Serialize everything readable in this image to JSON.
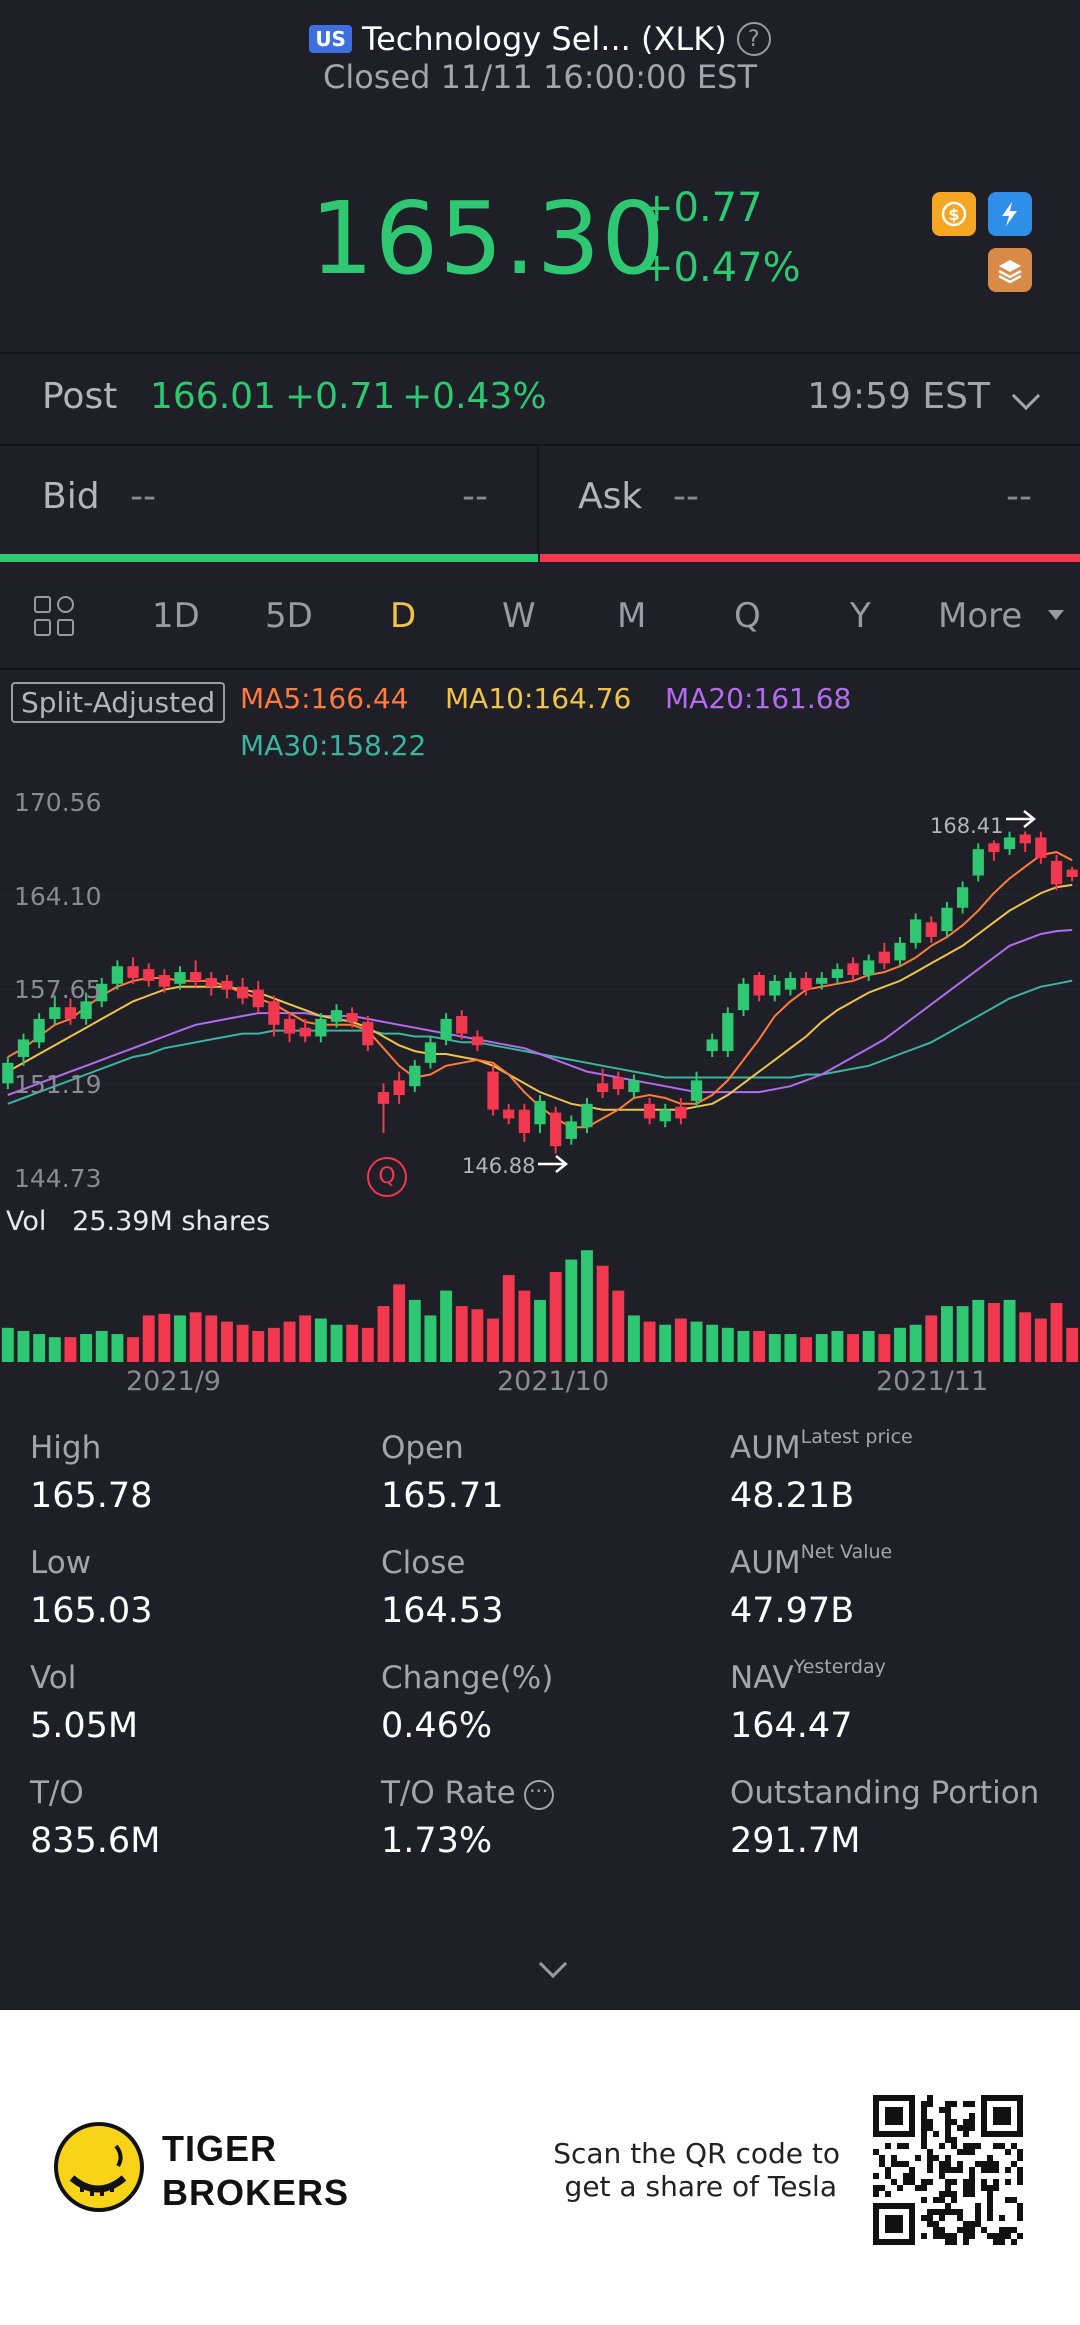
{
  "header": {
    "market_badge": "US",
    "title": "Technology Sel... (XLK)",
    "help": "?",
    "status": "Closed 11/11 16:00:00 EST"
  },
  "quote": {
    "price": "165.30",
    "change": "+0.77",
    "change_pct": "+0.47%",
    "color": "#2ec772",
    "feature_icons": [
      "dollar-icon",
      "lightning-icon",
      "stack-icon"
    ]
  },
  "post": {
    "label": "Post",
    "price": "166.01",
    "change": "+0.71",
    "change_pct": "+0.43%",
    "time": "19:59 EST"
  },
  "bid_ask": {
    "bid_label": "Bid",
    "bid_price": "--",
    "bid_size": "--",
    "ask_label": "Ask",
    "ask_price": "--",
    "ask_size": "--",
    "bid_color": "#2ec772",
    "ask_color": "#f2384f"
  },
  "period_tabs": {
    "items": [
      "1D",
      "5D",
      "D",
      "W",
      "M",
      "Q",
      "Y",
      "More"
    ],
    "active": "D"
  },
  "indicators": {
    "split_adjusted": "Split-Adjusted",
    "ma5": "MA5:166.44",
    "ma10": "MA10:164.76",
    "ma20": "MA20:161.68",
    "ma30": "MA30:158.22",
    "colors": {
      "ma5": "#ff7a3d",
      "ma10": "#f0c34a",
      "ma20": "#b36cf0",
      "ma30": "#3bb5a0"
    }
  },
  "chart": {
    "y_axis": [
      "170.56",
      "164.10",
      "157.65",
      "151.19",
      "144.73"
    ],
    "high_marker": "168.41",
    "low_marker": "146.88",
    "event_marker": "Q",
    "volume_label": "Vol",
    "volume_value": "25.39M shares",
    "x_axis": [
      "2021/9",
      "2021/10",
      "2021/11"
    ]
  },
  "chart_data": {
    "type": "candlestick",
    "ylim": [
      144.73,
      170.56
    ],
    "up_color": "#2ec772",
    "down_color": "#f2384f",
    "candles": [
      {
        "o": 151.2,
        "c": 152.6,
        "h": 153.0,
        "l": 150.8
      },
      {
        "o": 153.0,
        "c": 154.2,
        "h": 154.6,
        "l": 152.4
      },
      {
        "o": 154.0,
        "c": 155.6,
        "h": 156.0,
        "l": 153.6
      },
      {
        "o": 155.6,
        "c": 156.4,
        "h": 157.2,
        "l": 155.2
      },
      {
        "o": 156.4,
        "c": 155.6,
        "h": 157.0,
        "l": 155.2
      },
      {
        "o": 155.6,
        "c": 156.8,
        "h": 157.4,
        "l": 155.2
      },
      {
        "o": 156.8,
        "c": 158.0,
        "h": 158.4,
        "l": 156.4
      },
      {
        "o": 158.0,
        "c": 159.2,
        "h": 159.6,
        "l": 157.6
      },
      {
        "o": 159.2,
        "c": 158.4,
        "h": 159.8,
        "l": 158.0
      },
      {
        "o": 159.0,
        "c": 158.2,
        "h": 159.4,
        "l": 157.8
      },
      {
        "o": 158.6,
        "c": 157.8,
        "h": 159.0,
        "l": 157.4
      },
      {
        "o": 158.0,
        "c": 158.8,
        "h": 159.2,
        "l": 157.6
      },
      {
        "o": 158.8,
        "c": 158.2,
        "h": 159.6,
        "l": 157.8
      },
      {
        "o": 158.4,
        "c": 157.8,
        "h": 158.8,
        "l": 157.2
      },
      {
        "o": 158.2,
        "c": 157.6,
        "h": 158.6,
        "l": 157.0
      },
      {
        "o": 157.8,
        "c": 157.0,
        "h": 158.4,
        "l": 156.6
      },
      {
        "o": 157.6,
        "c": 156.4,
        "h": 158.2,
        "l": 156.0
      },
      {
        "o": 156.8,
        "c": 155.2,
        "h": 157.2,
        "l": 154.4
      },
      {
        "o": 155.6,
        "c": 154.6,
        "h": 156.0,
        "l": 154.0
      },
      {
        "o": 155.0,
        "c": 154.4,
        "h": 155.6,
        "l": 154.0
      },
      {
        "o": 154.4,
        "c": 155.6,
        "h": 156.0,
        "l": 154.0
      },
      {
        "o": 155.4,
        "c": 156.2,
        "h": 156.6,
        "l": 155.0
      },
      {
        "o": 156.0,
        "c": 155.4,
        "h": 156.4,
        "l": 155.0
      },
      {
        "o": 155.4,
        "c": 153.8,
        "h": 155.8,
        "l": 153.4
      },
      {
        "o": 150.6,
        "c": 149.8,
        "h": 151.2,
        "l": 147.8
      },
      {
        "o": 151.4,
        "c": 150.4,
        "h": 152.0,
        "l": 149.8
      },
      {
        "o": 151.0,
        "c": 152.4,
        "h": 152.8,
        "l": 150.6
      },
      {
        "o": 152.6,
        "c": 154.0,
        "h": 154.4,
        "l": 152.2
      },
      {
        "o": 154.2,
        "c": 155.6,
        "h": 156.0,
        "l": 153.8
      },
      {
        "o": 155.8,
        "c": 154.6,
        "h": 156.2,
        "l": 154.2
      },
      {
        "o": 154.4,
        "c": 153.8,
        "h": 154.8,
        "l": 153.4
      },
      {
        "o": 152.0,
        "c": 149.4,
        "h": 152.4,
        "l": 149.0
      },
      {
        "o": 149.4,
        "c": 148.8,
        "h": 149.8,
        "l": 148.4
      },
      {
        "o": 149.4,
        "c": 147.8,
        "h": 149.8,
        "l": 147.2
      },
      {
        "o": 148.4,
        "c": 150.0,
        "h": 150.4,
        "l": 147.8
      },
      {
        "o": 149.2,
        "c": 146.9,
        "h": 149.6,
        "l": 146.4
      },
      {
        "o": 147.4,
        "c": 148.6,
        "h": 149.0,
        "l": 147.0
      },
      {
        "o": 148.2,
        "c": 149.8,
        "h": 150.2,
        "l": 147.8
      },
      {
        "o": 151.2,
        "c": 150.6,
        "h": 152.2,
        "l": 150.2
      },
      {
        "o": 151.6,
        "c": 150.8,
        "h": 152.0,
        "l": 150.4
      },
      {
        "o": 150.6,
        "c": 151.4,
        "h": 151.8,
        "l": 150.2
      },
      {
        "o": 149.8,
        "c": 148.8,
        "h": 150.2,
        "l": 148.4
      },
      {
        "o": 148.6,
        "c": 149.4,
        "h": 149.8,
        "l": 148.2
      },
      {
        "o": 149.6,
        "c": 148.8,
        "h": 150.2,
        "l": 148.4
      },
      {
        "o": 150.0,
        "c": 151.4,
        "h": 152.0,
        "l": 149.6
      },
      {
        "o": 153.4,
        "c": 154.2,
        "h": 154.6,
        "l": 153.0
      },
      {
        "o": 153.4,
        "c": 156.0,
        "h": 156.4,
        "l": 153.0
      },
      {
        "o": 156.2,
        "c": 158.0,
        "h": 158.4,
        "l": 155.8
      },
      {
        "o": 158.6,
        "c": 157.2,
        "h": 158.8,
        "l": 156.8
      },
      {
        "o": 157.2,
        "c": 158.2,
        "h": 158.6,
        "l": 156.8
      },
      {
        "o": 157.6,
        "c": 158.4,
        "h": 158.8,
        "l": 157.2
      },
      {
        "o": 158.4,
        "c": 157.6,
        "h": 158.8,
        "l": 157.2
      },
      {
        "o": 158.0,
        "c": 158.4,
        "h": 158.8,
        "l": 157.6
      },
      {
        "o": 158.4,
        "c": 159.0,
        "h": 159.4,
        "l": 158.0
      },
      {
        "o": 159.4,
        "c": 158.6,
        "h": 159.8,
        "l": 158.2
      },
      {
        "o": 158.6,
        "c": 159.6,
        "h": 160.0,
        "l": 158.2
      },
      {
        "o": 160.2,
        "c": 159.4,
        "h": 160.8,
        "l": 159.0
      },
      {
        "o": 159.6,
        "c": 160.8,
        "h": 161.2,
        "l": 159.2
      },
      {
        "o": 160.8,
        "c": 162.4,
        "h": 162.8,
        "l": 160.4
      },
      {
        "o": 162.2,
        "c": 161.2,
        "h": 162.6,
        "l": 160.8
      },
      {
        "o": 161.6,
        "c": 163.2,
        "h": 163.6,
        "l": 161.2
      },
      {
        "o": 163.2,
        "c": 164.6,
        "h": 165.0,
        "l": 162.8
      },
      {
        "o": 165.4,
        "c": 167.2,
        "h": 167.6,
        "l": 165.0
      },
      {
        "o": 167.6,
        "c": 167.0,
        "h": 167.8,
        "l": 166.4
      },
      {
        "o": 167.2,
        "c": 168.0,
        "h": 168.4,
        "l": 166.8
      },
      {
        "o": 168.2,
        "c": 167.6,
        "h": 168.41,
        "l": 167.0
      },
      {
        "o": 168.0,
        "c": 166.6,
        "h": 168.4,
        "l": 166.2
      },
      {
        "o": 166.4,
        "c": 164.8,
        "h": 166.8,
        "l": 164.4
      },
      {
        "o": 165.8,
        "c": 165.3,
        "h": 166.0,
        "l": 165.0
      }
    ],
    "ma5": [
      153,
      153.6,
      154.4,
      155.2,
      155.6,
      156.4,
      157.2,
      157.8,
      158.2,
      158.4,
      158.4,
      158.2,
      158.2,
      158.2,
      157.8,
      157.4,
      157,
      156.6,
      156,
      155.4,
      155.2,
      155.2,
      155.2,
      154.8,
      153.6,
      152.4,
      151.6,
      151.8,
      152.4,
      152.6,
      152.8,
      152.6,
      151.8,
      150.6,
      149.6,
      148.8,
      148.2,
      148.2,
      148.8,
      149.4,
      150.2,
      150.4,
      150.2,
      149.8,
      149.8,
      150.4,
      151.4,
      152.8,
      154.2,
      155.8,
      156.8,
      157.6,
      157.8,
      158,
      158.2,
      158.6,
      158.8,
      159.2,
      159.8,
      160.6,
      161.2,
      162,
      163,
      164.2,
      165.2,
      166,
      166.8,
      167,
      166.44
    ],
    "ma10": [
      152,
      152.6,
      153.2,
      153.8,
      154.4,
      155,
      155.6,
      156.2,
      156.8,
      157.2,
      157.6,
      157.8,
      157.8,
      157.8,
      157.8,
      157.6,
      157.4,
      157,
      156.6,
      156.2,
      155.8,
      155.6,
      155.4,
      155,
      154.4,
      153.8,
      153.4,
      153.2,
      153.2,
      153,
      152.8,
      152.4,
      151.8,
      151.2,
      150.6,
      150.2,
      149.8,
      149.6,
      149.4,
      149.4,
      149.4,
      149.4,
      149.4,
      149.4,
      149.6,
      149.8,
      150.4,
      151.2,
      152,
      152.8,
      153.6,
      154.4,
      155.4,
      156.2,
      156.8,
      157.4,
      157.8,
      158.2,
      158.8,
      159.4,
      160,
      160.6,
      161.4,
      162.2,
      163,
      163.6,
      164.2,
      164.6,
      164.76
    ],
    "ma20": [
      150.4,
      150.8,
      151.2,
      151.6,
      152,
      152.4,
      152.8,
      153.2,
      153.6,
      154,
      154.4,
      154.8,
      155.2,
      155.4,
      155.6,
      155.8,
      156,
      156,
      156,
      156,
      155.8,
      155.8,
      155.8,
      155.6,
      155.4,
      155.2,
      155,
      154.8,
      154.6,
      154.4,
      154.2,
      154,
      153.8,
      153.6,
      153.2,
      152.8,
      152.4,
      152,
      151.8,
      151.6,
      151.4,
      151.2,
      151,
      150.8,
      150.6,
      150.6,
      150.6,
      150.6,
      150.6,
      150.8,
      151,
      151.4,
      151.8,
      152.4,
      153,
      153.6,
      154.2,
      155,
      155.8,
      156.6,
      157.4,
      158.2,
      159,
      159.8,
      160.6,
      161,
      161.4,
      161.6,
      161.68
    ],
    "ma30": [
      149.8,
      150.2,
      150.6,
      151,
      151.4,
      151.8,
      152.2,
      152.6,
      153,
      153.2,
      153.6,
      153.8,
      154,
      154.2,
      154.4,
      154.6,
      154.6,
      154.8,
      154.8,
      154.8,
      154.8,
      154.8,
      154.8,
      154.8,
      154.6,
      154.6,
      154.4,
      154.4,
      154.2,
      154,
      154,
      153.8,
      153.6,
      153.4,
      153.2,
      153,
      152.8,
      152.6,
      152.4,
      152.2,
      152,
      151.8,
      151.6,
      151.6,
      151.6,
      151.6,
      151.6,
      151.6,
      151.6,
      151.6,
      151.6,
      151.8,
      151.8,
      152,
      152.2,
      152.4,
      152.8,
      153.2,
      153.6,
      154,
      154.6,
      155.2,
      155.8,
      156.4,
      157,
      157.4,
      157.8,
      158,
      158.22
    ],
    "volumes": [
      22,
      20,
      18,
      16,
      16,
      18,
      20,
      18,
      16,
      30,
      31,
      30,
      32,
      30,
      26,
      24,
      20,
      22,
      26,
      30,
      28,
      24,
      24,
      22,
      36,
      50,
      40,
      30,
      46,
      36,
      34,
      28,
      56,
      46,
      40,
      58,
      66,
      72,
      62,
      46,
      30,
      26,
      24,
      28,
      26,
      24,
      22,
      20,
      20,
      18,
      18,
      16,
      18,
      20,
      18,
      20,
      18,
      22,
      24,
      30,
      36,
      36,
      40,
      38,
      40,
      32,
      28,
      38,
      22
    ],
    "max_volume": 76
  },
  "stats": [
    {
      "label": "High",
      "sup": "",
      "value": "165.78"
    },
    {
      "label": "Open",
      "sup": "",
      "value": "165.71"
    },
    {
      "label": "AUM",
      "sup": "Latest price",
      "value": "48.21B"
    },
    {
      "label": "Low",
      "sup": "",
      "value": "165.03"
    },
    {
      "label": "Close",
      "sup": "",
      "value": "164.53"
    },
    {
      "label": "AUM",
      "sup": "Net Value",
      "value": "47.97B"
    },
    {
      "label": "Vol",
      "sup": "",
      "value": "5.05M"
    },
    {
      "label": "Change(%)",
      "sup": "",
      "value": "0.46%"
    },
    {
      "label": "NAV",
      "sup": "Yesterday",
      "value": "164.47"
    },
    {
      "label": "T/O",
      "sup": "",
      "value": "835.6M"
    },
    {
      "label": "T/O Rate",
      "sup": "",
      "value": "1.73%"
    },
    {
      "label": "Outstanding Portion",
      "sup": "",
      "value": "291.7M"
    }
  ],
  "footer": {
    "brand_line1": "TIGER",
    "brand_line2": "BROKERS",
    "promo_line1": "Scan the QR code to",
    "promo_line2": "get a share of Tesla"
  }
}
